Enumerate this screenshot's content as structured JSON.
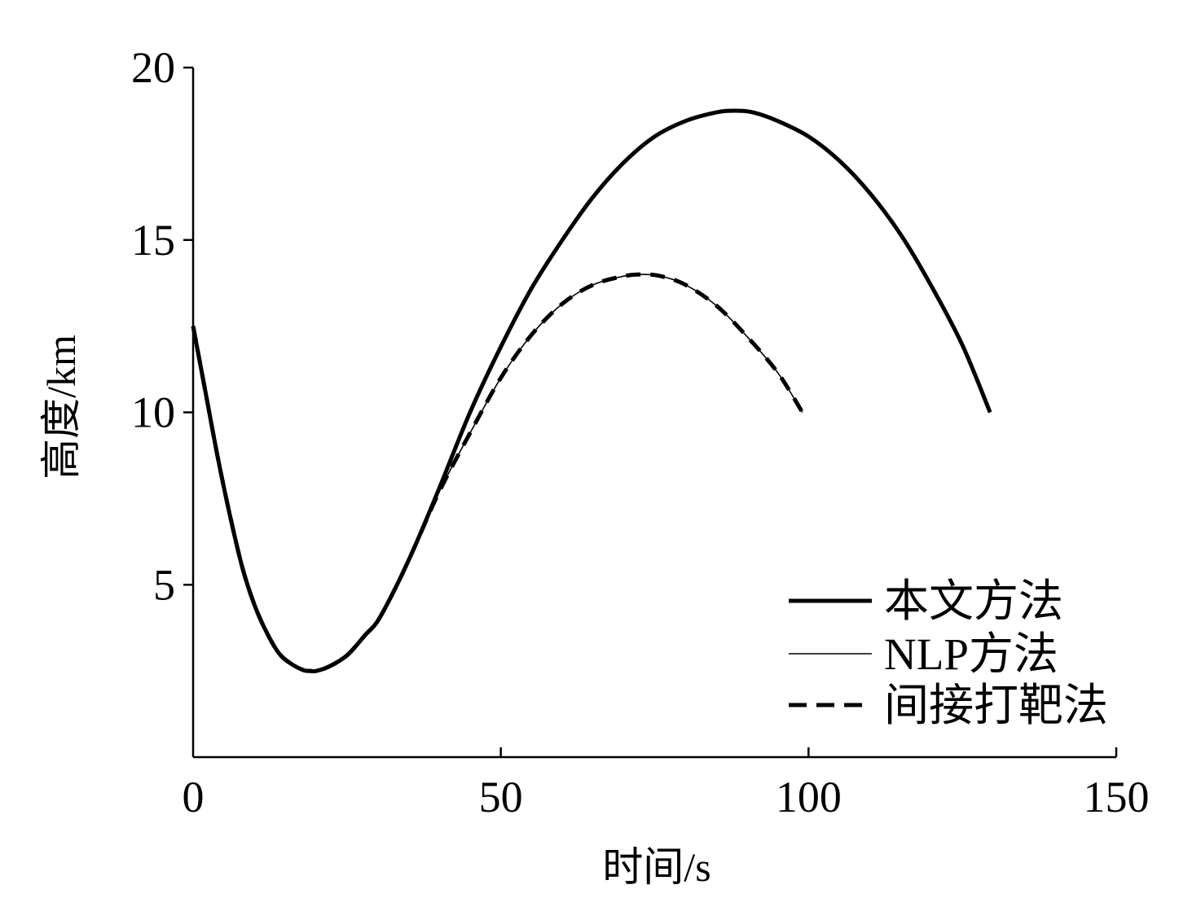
{
  "chart_data": {
    "type": "line",
    "xlabel": "时间/s",
    "ylabel": "高度/km",
    "xlim": [
      0,
      150
    ],
    "ylim": [
      0,
      20
    ],
    "xticks": [
      0,
      50,
      100,
      150
    ],
    "xtick_labels": [
      "0",
      "50",
      "100",
      "150"
    ],
    "yticks": [
      5,
      10,
      15,
      20
    ],
    "ytick_labels": [
      "5",
      "10",
      "15",
      "20"
    ],
    "grid": false,
    "legend": "bottom-right",
    "series": [
      {
        "name": "本文方法",
        "color": "#000000",
        "line_style": "solid",
        "x": [
          0,
          2,
          4,
          6,
          8,
          10,
          12,
          14,
          16,
          18,
          19,
          20,
          22,
          25,
          28,
          30,
          33,
          36,
          40,
          45,
          50,
          55,
          60,
          65,
          70,
          75,
          80,
          85,
          88,
          91,
          95,
          100,
          105,
          110,
          115,
          120,
          125,
          129.5
        ],
        "y": [
          12.5,
          10.6,
          8.7,
          7.0,
          5.5,
          4.4,
          3.6,
          3.0,
          2.7,
          2.52,
          2.5,
          2.5,
          2.62,
          2.95,
          3.55,
          3.95,
          4.95,
          6.1,
          7.8,
          10.0,
          11.9,
          13.6,
          15.0,
          16.25,
          17.25,
          18.0,
          18.45,
          18.7,
          18.75,
          18.7,
          18.45,
          18.0,
          17.3,
          16.35,
          15.15,
          13.65,
          11.95,
          10.0
        ]
      },
      {
        "name": "NLP方法",
        "color": "#000000",
        "line_style": "solid",
        "x": [
          0,
          2,
          4,
          6,
          8,
          10,
          12,
          14,
          16,
          18,
          19,
          20,
          22,
          25,
          28,
          30,
          33,
          36,
          40,
          45,
          50,
          55,
          60,
          65,
          70,
          73,
          76,
          80,
          85,
          90,
          95,
          99
        ],
        "y": [
          12.5,
          10.6,
          8.7,
          7.0,
          5.5,
          4.4,
          3.6,
          3.0,
          2.7,
          2.52,
          2.5,
          2.5,
          2.62,
          2.95,
          3.55,
          3.95,
          4.95,
          6.1,
          7.7,
          9.4,
          11.0,
          12.25,
          13.15,
          13.7,
          13.95,
          14.0,
          13.95,
          13.7,
          13.1,
          12.2,
          11.15,
          10.0
        ]
      },
      {
        "name": "间接打靶法",
        "color": "#000000",
        "line_style": "dashed",
        "x": [
          0,
          2,
          4,
          6,
          8,
          10,
          12,
          14,
          16,
          18,
          19,
          20,
          22,
          25,
          28,
          30,
          33,
          36,
          40,
          45,
          50,
          55,
          60,
          65,
          70,
          73,
          76,
          80,
          85,
          90,
          95,
          99
        ],
        "y": [
          12.5,
          10.6,
          8.7,
          7.0,
          5.5,
          4.4,
          3.6,
          3.0,
          2.7,
          2.52,
          2.5,
          2.5,
          2.62,
          2.95,
          3.55,
          3.95,
          4.95,
          6.1,
          7.7,
          9.4,
          11.0,
          12.25,
          13.15,
          13.7,
          13.95,
          14.0,
          13.95,
          13.7,
          13.1,
          12.2,
          11.15,
          10.0
        ]
      }
    ]
  }
}
